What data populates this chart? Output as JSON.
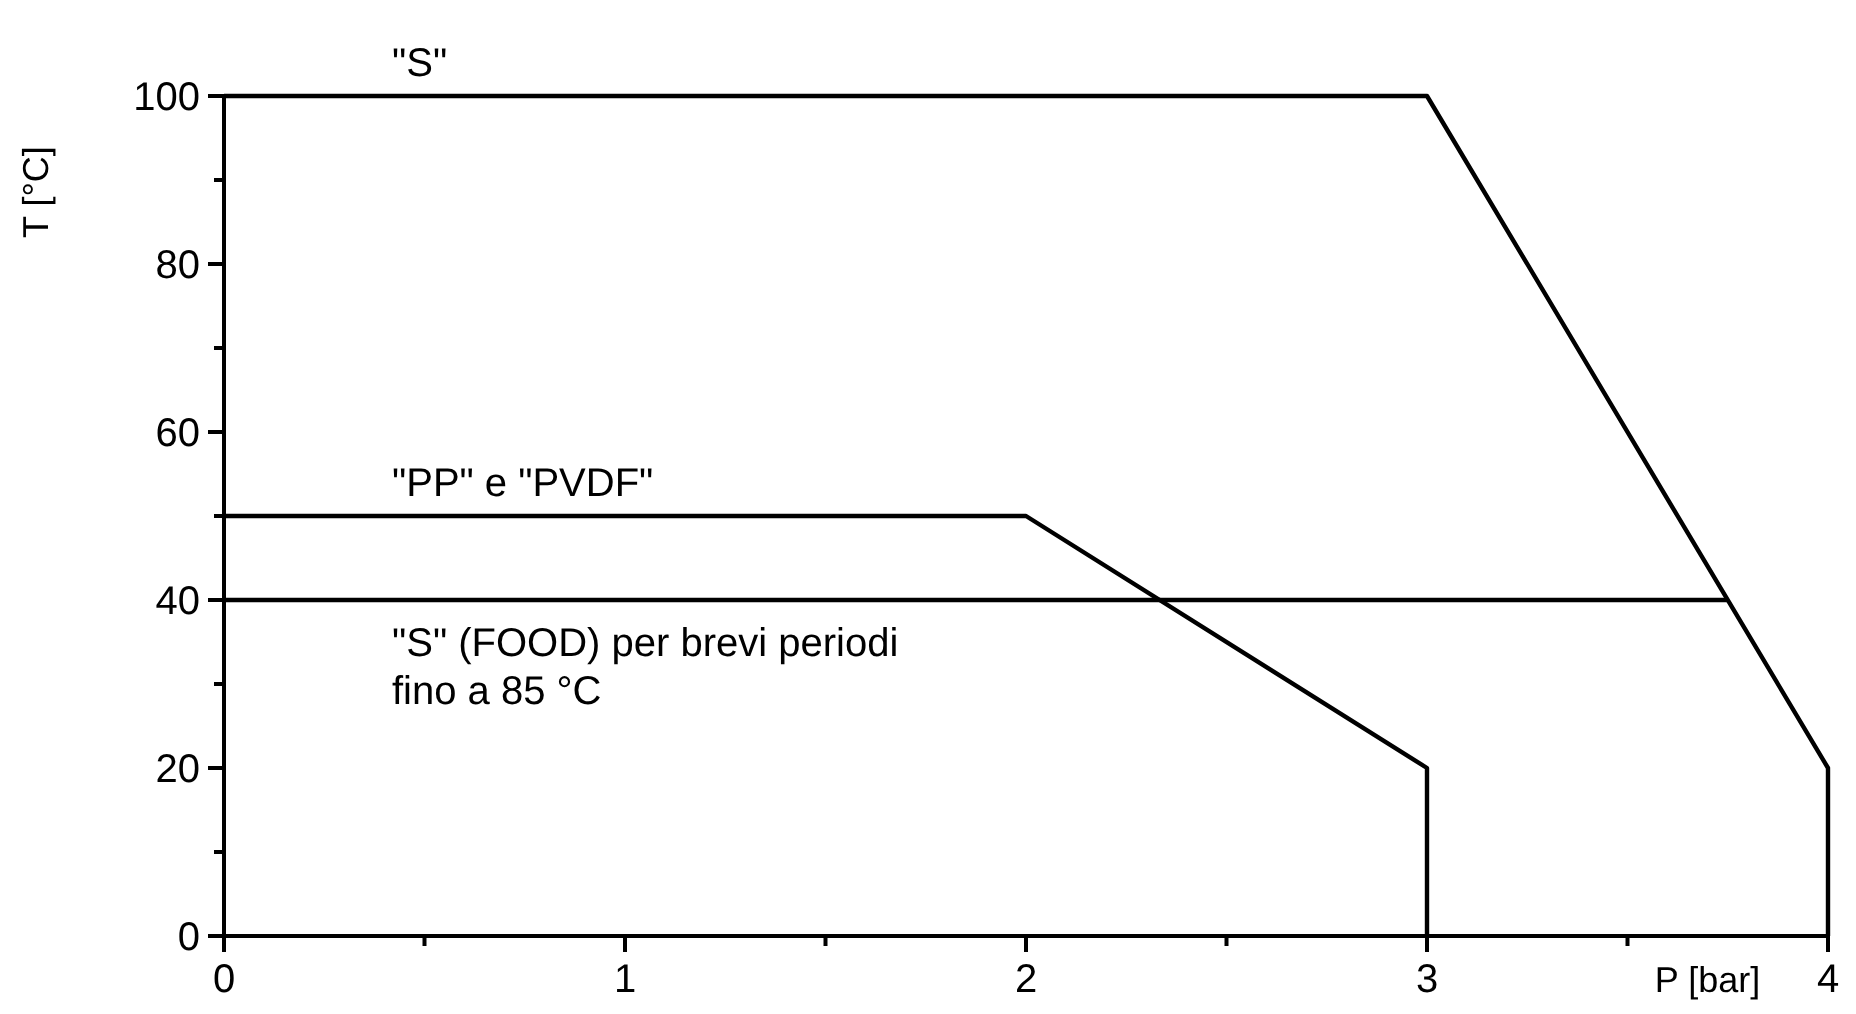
{
  "chart_data": {
    "type": "line",
    "xlabel": "P [bar]",
    "ylabel": "T [°C]",
    "xlim": [
      0,
      4
    ],
    "ylim": [
      0,
      100
    ],
    "xticks": [
      0,
      {
        "value": 0.5,
        "label": null
      },
      1,
      {
        "value": 1.5,
        "label": null
      },
      2,
      {
        "value": 2.5,
        "label": null
      },
      3,
      {
        "value": 3.5,
        "label": null
      },
      4
    ],
    "yticks": [
      0,
      {
        "value": 10,
        "label": null
      },
      20,
      {
        "value": 30,
        "label": null
      },
      40,
      {
        "value": 50,
        "label": null
      },
      60,
      {
        "value": 70,
        "label": null
      },
      80,
      {
        "value": 90,
        "label": null
      },
      100
    ],
    "grid": false,
    "marker": "none",
    "line_style": "solid",
    "series": [
      {
        "name": "\"S\"",
        "color": "#000000",
        "x": [
          0,
          3,
          4,
          4
        ],
        "values": [
          100,
          100,
          20,
          0
        ]
      },
      {
        "name": "\"PP\" e \"PVDF\"",
        "color": "#000000",
        "x": [
          0,
          2,
          3,
          3
        ],
        "values": [
          50,
          50,
          20,
          0
        ]
      },
      {
        "name": "\"S\" (FOOD) per brevi periodi\nfino a 85 °C",
        "color": "#000000",
        "x": [
          0,
          3.75
        ],
        "values": [
          40,
          40
        ]
      }
    ]
  }
}
